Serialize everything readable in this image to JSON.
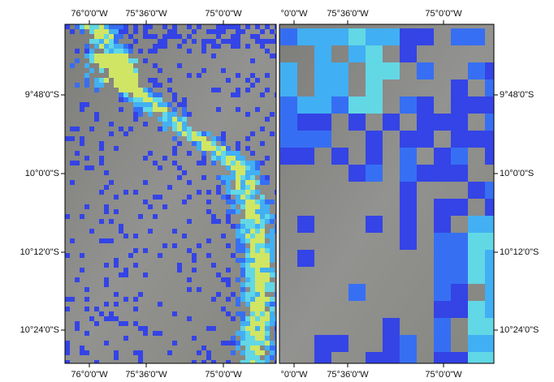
{
  "left_panel": {
    "top_labels": [
      "76°0'0\"W",
      "75°36'0\"W",
      "75°0'0\"W"
    ],
    "bottom_labels": [
      "76°0'0\"W",
      "75°36'0\"W",
      "75°0'0\"W"
    ],
    "side_labels": [
      "9°48'0\"S",
      "10°0'0\"S",
      "10°12'0\"S",
      "10°24'0\"S"
    ]
  },
  "right_panel": {
    "top_labels": [
      "°0'0\"W",
      "75°36'0\"W",
      "75°0'0\"W"
    ],
    "bottom_labels": [
      "°0'0\"W",
      "75°36'0\"W",
      "75°0'0\"W"
    ],
    "side_labels": [
      "9°48'0\"S",
      "10°0'0\"S",
      "10°12'0\"S",
      "10°24'0\"S"
    ]
  }
}
